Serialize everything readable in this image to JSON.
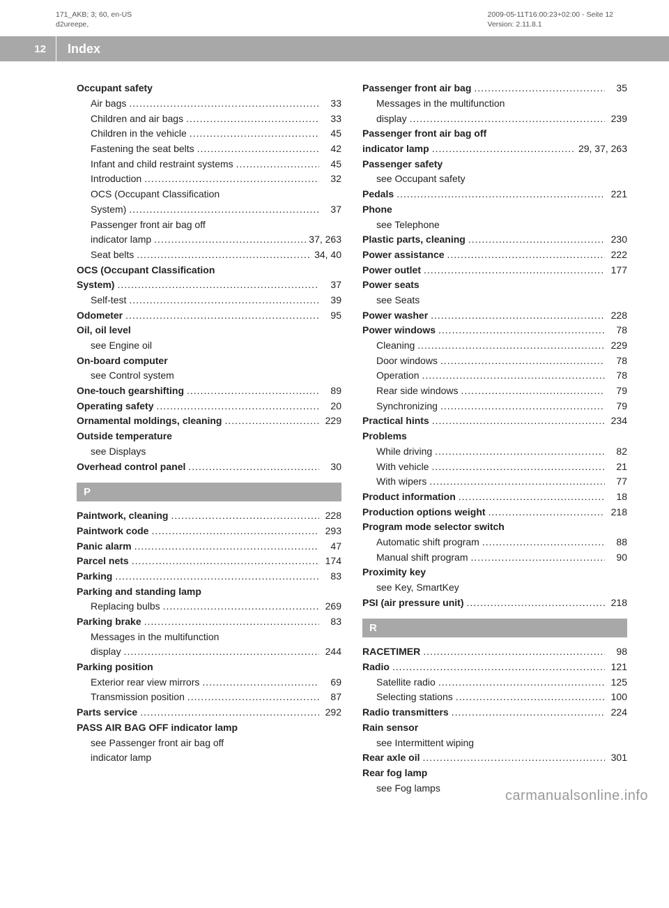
{
  "meta": {
    "left_line1": "171_AKB; 3; 60, en-US",
    "left_line2": "d2ureepe,",
    "right_line1": "2009-05-11T16:00:23+02:00 - Seite 12",
    "right_line2": "Version: 2.11.8.1"
  },
  "header": {
    "page_number": "12",
    "title": "Index"
  },
  "watermark": "carmanualsonline.info",
  "columns": {
    "left": [
      {
        "type": "entry",
        "bold": true,
        "label": "Occupant safety",
        "pages": ""
      },
      {
        "type": "entry",
        "sub": true,
        "label": "Air bags",
        "pages": "33"
      },
      {
        "type": "entry",
        "sub": true,
        "label": "Children and air bags",
        "pages": "33"
      },
      {
        "type": "entry",
        "sub": true,
        "label": "Children in the vehicle",
        "pages": "45"
      },
      {
        "type": "entry",
        "sub": true,
        "label": "Fastening the seat belts",
        "pages": "42"
      },
      {
        "type": "entry",
        "sub": true,
        "label": "Infant and child restraint systems",
        "pages": "45",
        "tightdots": true
      },
      {
        "type": "entry",
        "sub": true,
        "label": "Introduction",
        "pages": "32"
      },
      {
        "type": "entry",
        "sub": true,
        "label": "OCS (Occupant Classification",
        "pages": "",
        "nopages": true
      },
      {
        "type": "entry",
        "sub": true,
        "label": "System)",
        "pages": "37"
      },
      {
        "type": "entry",
        "sub": true,
        "label": "Passenger front air bag off",
        "pages": "",
        "nopages": true
      },
      {
        "type": "entry",
        "sub": true,
        "label": "indicator lamp",
        "pages": "37, 263"
      },
      {
        "type": "entry",
        "sub": true,
        "label": "Seat belts",
        "pages": "34, 40"
      },
      {
        "type": "entry",
        "bold": true,
        "label": "OCS (Occupant Classification",
        "pages": "",
        "nopages": true
      },
      {
        "type": "entry",
        "bold": true,
        "label": "System)",
        "pages": "37"
      },
      {
        "type": "entry",
        "sub": true,
        "label": "Self-test",
        "pages": "39"
      },
      {
        "type": "entry",
        "bold": true,
        "label": "Odometer",
        "pages": "95"
      },
      {
        "type": "entry",
        "bold": true,
        "label": "Oil, oil level",
        "pages": "",
        "nopages": true
      },
      {
        "type": "entry",
        "sub": true,
        "label": "see Engine oil",
        "pages": "",
        "nopages": true
      },
      {
        "type": "entry",
        "bold": true,
        "label": "On-board computer",
        "pages": "",
        "nopages": true
      },
      {
        "type": "entry",
        "sub": true,
        "label": "see Control system",
        "pages": "",
        "nopages": true
      },
      {
        "type": "entry",
        "bold": true,
        "label": "One-touch gearshifting",
        "pages": "89"
      },
      {
        "type": "entry",
        "bold": true,
        "label": "Operating safety",
        "pages": "20"
      },
      {
        "type": "entry",
        "bold": true,
        "label": "Ornamental moldings, cleaning",
        "pages": "229"
      },
      {
        "type": "entry",
        "bold": true,
        "label": "Outside temperature",
        "pages": "",
        "nopages": true
      },
      {
        "type": "entry",
        "sub": true,
        "label": "see Displays",
        "pages": "",
        "nopages": true
      },
      {
        "type": "entry",
        "bold": true,
        "label": "Overhead control panel",
        "pages": "30"
      },
      {
        "type": "letter",
        "value": "P"
      },
      {
        "type": "entry",
        "bold": true,
        "label": "Paintwork, cleaning",
        "pages": "228"
      },
      {
        "type": "entry",
        "bold": true,
        "label": "Paintwork code",
        "pages": "293"
      },
      {
        "type": "entry",
        "bold": true,
        "label": "Panic alarm",
        "pages": "47"
      },
      {
        "type": "entry",
        "bold": true,
        "label": "Parcel nets",
        "pages": "174"
      },
      {
        "type": "entry",
        "bold": true,
        "label": "Parking",
        "pages": "83"
      },
      {
        "type": "entry",
        "bold": true,
        "label": "Parking and standing lamp",
        "pages": "",
        "nopages": true
      },
      {
        "type": "entry",
        "sub": true,
        "label": "Replacing bulbs",
        "pages": "269"
      },
      {
        "type": "entry",
        "bold": true,
        "label": "Parking brake",
        "pages": "83"
      },
      {
        "type": "entry",
        "sub": true,
        "label": "Messages in the multifunction",
        "pages": "",
        "nopages": true
      },
      {
        "type": "entry",
        "sub": true,
        "label": "display",
        "pages": "244"
      },
      {
        "type": "entry",
        "bold": true,
        "label": "Parking position",
        "pages": "",
        "nopages": true
      },
      {
        "type": "entry",
        "sub": true,
        "label": "Exterior rear view mirrors",
        "pages": "69"
      },
      {
        "type": "entry",
        "sub": true,
        "label": "Transmission position",
        "pages": "87"
      },
      {
        "type": "entry",
        "bold": true,
        "label": "Parts service",
        "pages": "292"
      },
      {
        "type": "entry",
        "bold": true,
        "label": "PASS AIR BAG OFF indicator lamp",
        "pages": "",
        "nopages": true
      },
      {
        "type": "entry",
        "sub": true,
        "label": "see Passenger front air bag off",
        "pages": "",
        "nopages": true
      },
      {
        "type": "entry",
        "sub": true,
        "label": "indicator lamp",
        "pages": "",
        "nopages": true
      }
    ],
    "right": [
      {
        "type": "entry",
        "bold": true,
        "label": "Passenger front air bag",
        "pages": "35"
      },
      {
        "type": "entry",
        "sub": true,
        "label": "Messages in the multifunction",
        "pages": "",
        "nopages": true
      },
      {
        "type": "entry",
        "sub": true,
        "label": "display",
        "pages": "239"
      },
      {
        "type": "entry",
        "bold": true,
        "label": "Passenger front air bag off",
        "pages": "",
        "nopages": true
      },
      {
        "type": "entry",
        "bold": true,
        "label": "indicator lamp",
        "pages": "29, 37, 263"
      },
      {
        "type": "entry",
        "bold": true,
        "label": "Passenger safety",
        "pages": "",
        "nopages": true
      },
      {
        "type": "entry",
        "sub": true,
        "label": "see Occupant safety",
        "pages": "",
        "nopages": true
      },
      {
        "type": "entry",
        "bold": true,
        "label": "Pedals",
        "pages": "221"
      },
      {
        "type": "entry",
        "bold": true,
        "label": "Phone",
        "pages": "",
        "nopages": true
      },
      {
        "type": "entry",
        "sub": true,
        "label": "see Telephone",
        "pages": "",
        "nopages": true
      },
      {
        "type": "entry",
        "bold": true,
        "label": "Plastic parts, cleaning",
        "pages": "230"
      },
      {
        "type": "entry",
        "bold": true,
        "label": "Power assistance",
        "pages": "222"
      },
      {
        "type": "entry",
        "bold": true,
        "label": "Power outlet",
        "pages": "177"
      },
      {
        "type": "entry",
        "bold": true,
        "label": "Power seats",
        "pages": "",
        "nopages": true
      },
      {
        "type": "entry",
        "sub": true,
        "label": "see Seats",
        "pages": "",
        "nopages": true
      },
      {
        "type": "entry",
        "bold": true,
        "label": "Power washer",
        "pages": "228"
      },
      {
        "type": "entry",
        "bold": true,
        "label": "Power windows",
        "pages": "78"
      },
      {
        "type": "entry",
        "sub": true,
        "label": "Cleaning",
        "pages": "229"
      },
      {
        "type": "entry",
        "sub": true,
        "label": "Door windows",
        "pages": "78"
      },
      {
        "type": "entry",
        "sub": true,
        "label": "Operation",
        "pages": "78"
      },
      {
        "type": "entry",
        "sub": true,
        "label": "Rear side windows",
        "pages": "79"
      },
      {
        "type": "entry",
        "sub": true,
        "label": "Synchronizing",
        "pages": "79"
      },
      {
        "type": "entry",
        "bold": true,
        "label": "Practical hints",
        "pages": "234"
      },
      {
        "type": "entry",
        "bold": true,
        "label": "Problems",
        "pages": "",
        "nopages": true
      },
      {
        "type": "entry",
        "sub": true,
        "label": "While driving",
        "pages": "82"
      },
      {
        "type": "entry",
        "sub": true,
        "label": "With vehicle",
        "pages": "21"
      },
      {
        "type": "entry",
        "sub": true,
        "label": "With wipers",
        "pages": "77"
      },
      {
        "type": "entry",
        "bold": true,
        "label": "Product information",
        "pages": "18"
      },
      {
        "type": "entry",
        "bold": true,
        "label": "Production options weight",
        "pages": "218"
      },
      {
        "type": "entry",
        "bold": true,
        "label": "Program mode selector switch",
        "pages": "",
        "nopages": true
      },
      {
        "type": "entry",
        "sub": true,
        "label": "Automatic shift program",
        "pages": "88"
      },
      {
        "type": "entry",
        "sub": true,
        "label": "Manual shift program",
        "pages": "90"
      },
      {
        "type": "entry",
        "bold": true,
        "label": "Proximity key",
        "pages": "",
        "nopages": true
      },
      {
        "type": "entry",
        "sub": true,
        "label": "see Key, SmartKey",
        "pages": "",
        "nopages": true
      },
      {
        "type": "entry",
        "bold": true,
        "label": "PSI (air pressure unit)",
        "pages": "218"
      },
      {
        "type": "letter",
        "value": "R"
      },
      {
        "type": "entry",
        "bold": true,
        "label": "RACETIMER",
        "pages": "98"
      },
      {
        "type": "entry",
        "bold": true,
        "label": "Radio",
        "pages": "121"
      },
      {
        "type": "entry",
        "sub": true,
        "label": "Satellite radio",
        "pages": "125"
      },
      {
        "type": "entry",
        "sub": true,
        "label": "Selecting stations",
        "pages": "100"
      },
      {
        "type": "entry",
        "bold": true,
        "label": "Radio transmitters",
        "pages": "224"
      },
      {
        "type": "entry",
        "bold": true,
        "label": "Rain sensor",
        "pages": "",
        "nopages": true
      },
      {
        "type": "entry",
        "sub": true,
        "label": "see Intermittent wiping",
        "pages": "",
        "nopages": true
      },
      {
        "type": "entry",
        "bold": true,
        "label": "Rear axle oil",
        "pages": "301"
      },
      {
        "type": "entry",
        "bold": true,
        "label": "Rear fog lamp",
        "pages": "",
        "nopages": true
      },
      {
        "type": "entry",
        "sub": true,
        "label": "see Fog lamps",
        "pages": "",
        "nopages": true
      }
    ]
  }
}
